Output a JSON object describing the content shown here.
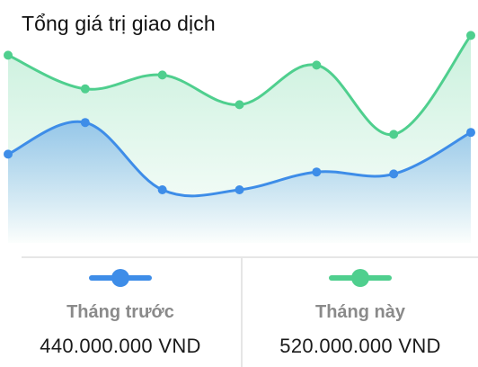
{
  "title": "Tổng giá trị giao dịch",
  "colors": {
    "previous": "#3e8de8",
    "current": "#4fcf8e",
    "label": "#8a8a8a",
    "value": "#1a1a1a"
  },
  "legend": {
    "previous": {
      "label": "Tháng trước",
      "value": "440.000.000 VND",
      "icon": "line-dot-icon"
    },
    "current": {
      "label": "Tháng này",
      "value": "520.000.000 VND",
      "icon": "line-dot-icon"
    }
  },
  "chart_data": {
    "type": "area",
    "title": "Tổng giá trị giao dịch",
    "x": [
      1,
      2,
      3,
      4,
      5,
      6,
      7
    ],
    "ylim": [
      0,
      100
    ],
    "grid": false,
    "series": [
      {
        "name": "Tháng này",
        "color": "#4fcf8e",
        "values": [
          88,
          71,
          78,
          63,
          83,
          48,
          98
        ]
      },
      {
        "name": "Tháng trước",
        "color": "#3e8de8",
        "values": [
          38,
          54,
          20,
          20,
          29,
          28,
          49
        ]
      }
    ]
  }
}
